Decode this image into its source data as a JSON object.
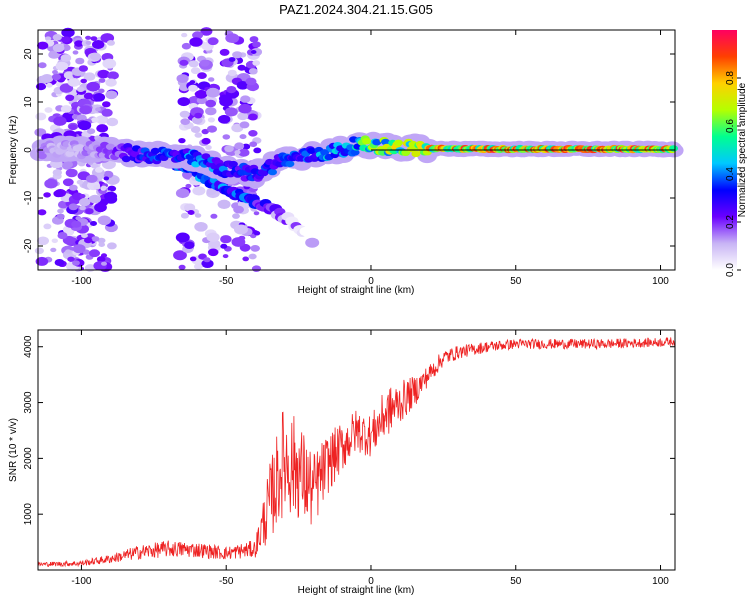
{
  "title": "PAZ1.2024.304.21.15.G05",
  "chart_data": [
    {
      "type": "heatmap",
      "xlabel": "Height of straight line (km)",
      "ylabel": "Frequency (Hz)",
      "xlim": [
        -115,
        105
      ],
      "ylim": [
        -25,
        25
      ],
      "xticks": [
        -100,
        -50,
        0,
        50,
        100
      ],
      "yticks": [
        -20,
        -10,
        0,
        10,
        20
      ],
      "colorbar": {
        "label": "Normalized spectral amplitude",
        "range": [
          0.0,
          1.0
        ],
        "ticks": [
          0.0,
          0.2,
          0.4,
          0.6,
          0.8
        ],
        "colormap": [
          "#ffffff",
          "#c8b4f5",
          "#6a00ff",
          "#0000ff",
          "#00c8ff",
          "#00ff90",
          "#b4ff00",
          "#ffd000",
          "#ff4000",
          "#ff0060"
        ]
      },
      "ridge": {
        "x": [
          -100,
          -90,
          -80,
          -70,
          -60,
          -50,
          -40,
          -30,
          -20,
          -10,
          -5,
          0,
          10,
          20,
          40,
          60,
          80,
          100,
          105
        ],
        "freq": [
          0,
          0,
          -1,
          -1,
          -2,
          -4,
          -5,
          -2,
          -1,
          0,
          1,
          1,
          0.5,
          0.3,
          0.2,
          0.2,
          0.2,
          0.2,
          0.2
        ],
        "amplitude": [
          0.15,
          0.2,
          0.35,
          0.4,
          0.45,
          0.4,
          0.35,
          0.4,
          0.45,
          0.5,
          0.6,
          0.65,
          0.75,
          0.85,
          0.9,
          0.9,
          0.9,
          0.9,
          0.9
        ]
      },
      "branch": {
        "x": [
          -70,
          -60,
          -50,
          -40,
          -35,
          -25,
          -20
        ],
        "freq": [
          -2,
          -5,
          -8,
          -11,
          -12,
          -16,
          -19
        ],
        "amplitude": [
          0.3,
          0.35,
          0.35,
          0.3,
          0.2,
          0.1,
          0.05
        ]
      },
      "noise_bands_x": [
        -110,
        -95,
        -60,
        -45
      ]
    },
    {
      "type": "line",
      "xlabel": "Height of straight line (km)",
      "ylabel": "SNR (10 * v/v)",
      "xlim": [
        -115,
        105
      ],
      "ylim": [
        0,
        4300
      ],
      "xticks": [
        -100,
        -50,
        0,
        50,
        100
      ],
      "yticks": [
        1000,
        2000,
        3000,
        4000
      ],
      "color": "#ee2222",
      "envelope": {
        "x": [
          -115,
          -100,
          -90,
          -80,
          -70,
          -60,
          -50,
          -40,
          -35,
          -30,
          -25,
          -20,
          -15,
          -10,
          -5,
          0,
          5,
          10,
          15,
          20,
          25,
          30,
          40,
          50,
          60,
          80,
          100,
          105
        ],
        "y": [
          100,
          120,
          200,
          320,
          380,
          360,
          300,
          380,
          1200,
          2000,
          1800,
          1400,
          1900,
          2200,
          2500,
          2400,
          2800,
          3000,
          3200,
          3500,
          3800,
          3900,
          4000,
          4050,
          4050,
          4050,
          4080,
          4100
        ],
        "noise": [
          40,
          50,
          80,
          130,
          150,
          140,
          120,
          160,
          700,
          1000,
          900,
          700,
          550,
          450,
          400,
          380,
          450,
          380,
          280,
          180,
          150,
          120,
          100,
          90,
          90,
          90,
          80,
          80
        ]
      }
    }
  ]
}
